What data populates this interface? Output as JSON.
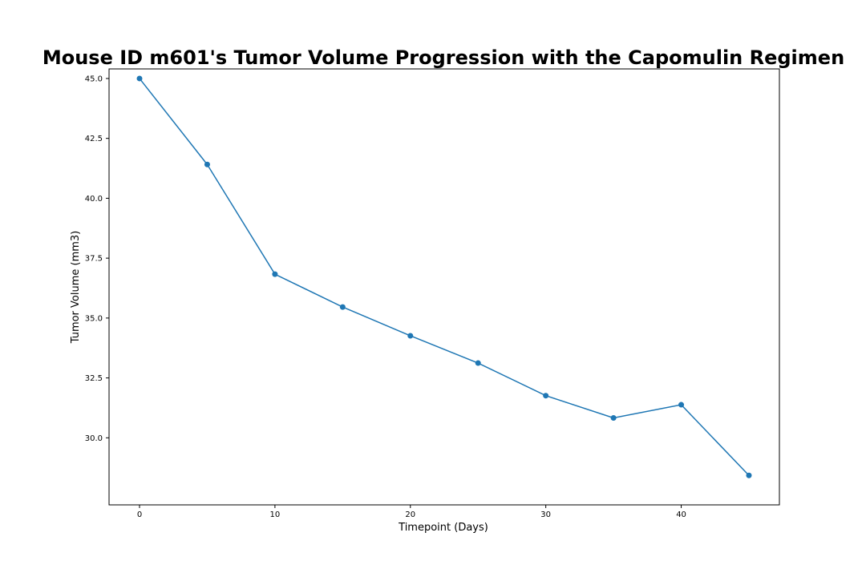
{
  "chart_data": {
    "type": "line",
    "title": "Mouse ID m601's Tumor Volume Progression with the Capomulin Regimen",
    "xlabel": "Timepoint (Days)",
    "ylabel": "Tumor Volume (mm3)",
    "x": [
      0,
      5,
      10,
      15,
      20,
      25,
      30,
      35,
      40,
      45
    ],
    "series": [
      {
        "values": [
          45.0,
          41.41,
          36.83,
          35.46,
          34.26,
          33.12,
          31.76,
          30.83,
          31.38,
          28.43
        ],
        "color": "#1f77b4",
        "marker": "circle"
      }
    ],
    "xlim": [
      -2.25,
      47.25
    ],
    "ylim": [
      27.2,
      45.4
    ],
    "xticks": [
      0,
      10,
      20,
      30,
      40
    ],
    "xtick_labels": [
      "0",
      "10",
      "20",
      "30",
      "40"
    ],
    "yticks": [
      30.0,
      32.5,
      35.0,
      37.5,
      40.0,
      42.5,
      45.0
    ],
    "ytick_labels": [
      "30.0",
      "32.5",
      "35.0",
      "37.5",
      "40.0",
      "42.5",
      "45.0"
    ],
    "grid": false,
    "legend": false
  }
}
